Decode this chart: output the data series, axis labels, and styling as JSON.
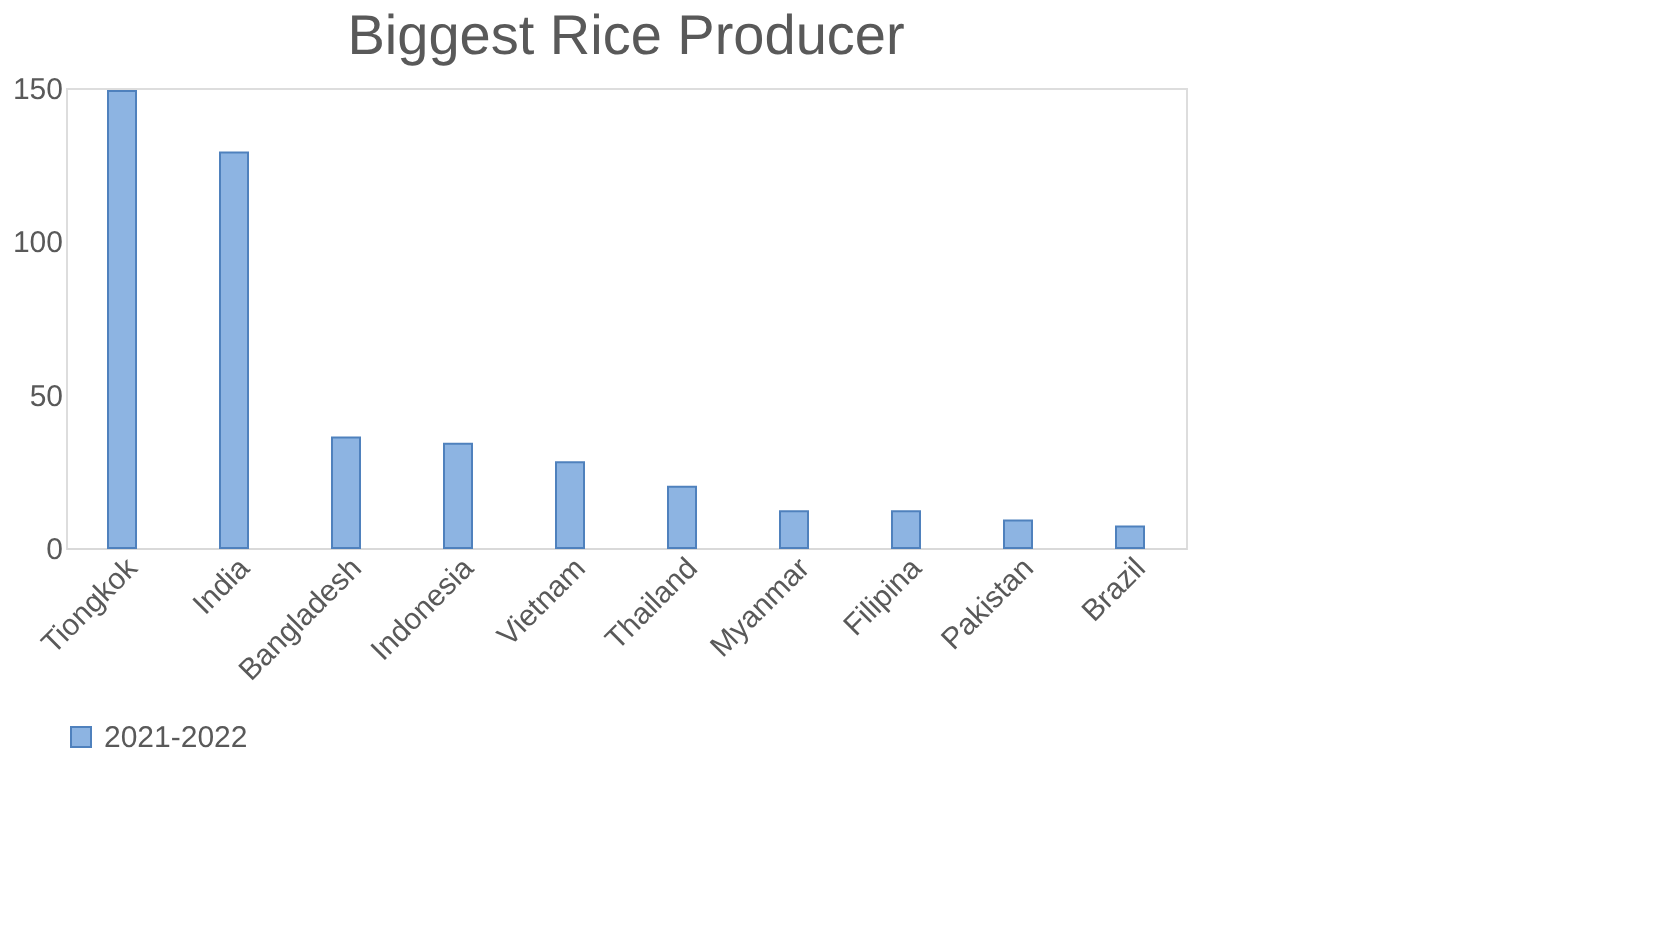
{
  "chart_data": {
    "type": "bar",
    "title": "Biggest Rice Producer",
    "categories": [
      "Tiongkok",
      "India",
      "Bangladesh",
      "Indonesia",
      "Vietnam",
      "Thailand",
      "Myanmar",
      "Filipina",
      "Pakistan",
      "Brazil"
    ],
    "series": [
      {
        "name": "2021-2022",
        "color": "#8db4e2",
        "values": [
          149,
          129,
          36,
          34,
          28,
          20,
          12,
          12,
          9,
          7
        ]
      }
    ],
    "ylim": [
      0,
      150
    ],
    "yticks": [
      0,
      50,
      100,
      150
    ],
    "grid": false,
    "legend": "bottom"
  }
}
